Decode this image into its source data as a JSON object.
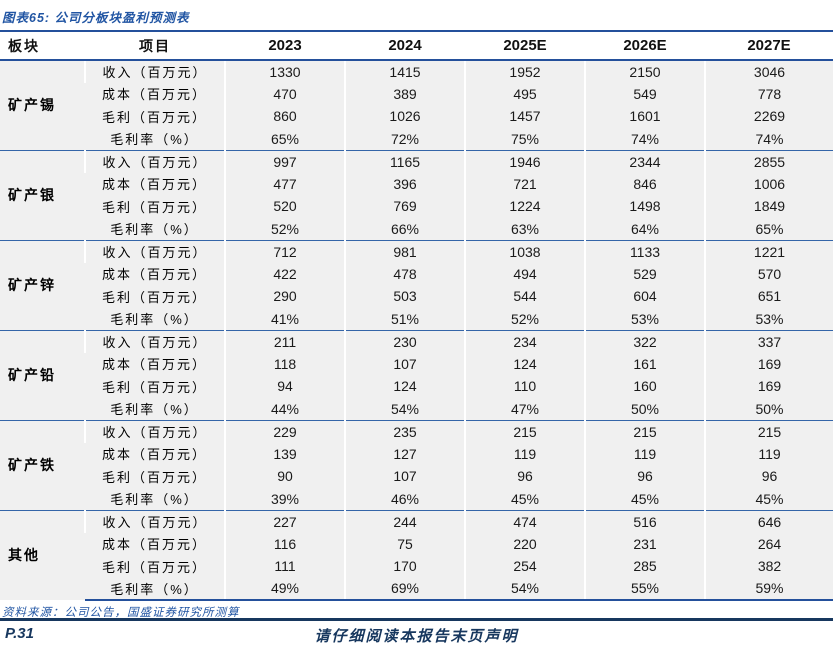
{
  "title": "图表65: 公司分板块盈利预测表",
  "table": {
    "columns": [
      "板块",
      "项目",
      "2023",
      "2024",
      "2025E",
      "2026E",
      "2027E"
    ],
    "segments": [
      {
        "name": "矿产锡",
        "rows": [
          {
            "label": "收入（百万元）",
            "values": [
              "1330",
              "1415",
              "1952",
              "2150",
              "3046"
            ]
          },
          {
            "label": "成本（百万元）",
            "values": [
              "470",
              "389",
              "495",
              "549",
              "778"
            ]
          },
          {
            "label": "毛利（百万元）",
            "values": [
              "860",
              "1026",
              "1457",
              "1601",
              "2269"
            ]
          },
          {
            "label": "毛利率（%）",
            "values": [
              "65%",
              "72%",
              "75%",
              "74%",
              "74%"
            ]
          }
        ]
      },
      {
        "name": "矿产银",
        "rows": [
          {
            "label": "收入（百万元）",
            "values": [
              "997",
              "1165",
              "1946",
              "2344",
              "2855"
            ]
          },
          {
            "label": "成本（百万元）",
            "values": [
              "477",
              "396",
              "721",
              "846",
              "1006"
            ]
          },
          {
            "label": "毛利（百万元）",
            "values": [
              "520",
              "769",
              "1224",
              "1498",
              "1849"
            ]
          },
          {
            "label": "毛利率（%）",
            "values": [
              "52%",
              "66%",
              "63%",
              "64%",
              "65%"
            ]
          }
        ]
      },
      {
        "name": "矿产锌",
        "rows": [
          {
            "label": "收入（百万元）",
            "values": [
              "712",
              "981",
              "1038",
              "1133",
              "1221"
            ]
          },
          {
            "label": "成本（百万元）",
            "values": [
              "422",
              "478",
              "494",
              "529",
              "570"
            ]
          },
          {
            "label": "毛利（百万元）",
            "values": [
              "290",
              "503",
              "544",
              "604",
              "651"
            ]
          },
          {
            "label": "毛利率（%）",
            "values": [
              "41%",
              "51%",
              "52%",
              "53%",
              "53%"
            ]
          }
        ]
      },
      {
        "name": "矿产铅",
        "rows": [
          {
            "label": "收入（百万元）",
            "values": [
              "211",
              "230",
              "234",
              "322",
              "337"
            ]
          },
          {
            "label": "成本（百万元）",
            "values": [
              "118",
              "107",
              "124",
              "161",
              "169"
            ]
          },
          {
            "label": "毛利（百万元）",
            "values": [
              "94",
              "124",
              "110",
              "160",
              "169"
            ]
          },
          {
            "label": "毛利率（%）",
            "values": [
              "44%",
              "54%",
              "47%",
              "50%",
              "50%"
            ]
          }
        ]
      },
      {
        "name": "矿产铁",
        "rows": [
          {
            "label": "收入（百万元）",
            "values": [
              "229",
              "235",
              "215",
              "215",
              "215"
            ]
          },
          {
            "label": "成本（百万元）",
            "values": [
              "139",
              "127",
              "119",
              "119",
              "119"
            ]
          },
          {
            "label": "毛利（百万元）",
            "values": [
              "90",
              "107",
              "96",
              "96",
              "96"
            ]
          },
          {
            "label": "毛利率（%）",
            "values": [
              "39%",
              "46%",
              "45%",
              "45%",
              "45%"
            ]
          }
        ]
      },
      {
        "name": "其他",
        "rows": [
          {
            "label": "收入（百万元）",
            "values": [
              "227",
              "244",
              "474",
              "516",
              "646"
            ]
          },
          {
            "label": "成本（百万元）",
            "values": [
              "116",
              "75",
              "220",
              "231",
              "264"
            ]
          },
          {
            "label": "毛利（百万元）",
            "values": [
              "111",
              "170",
              "254",
              "285",
              "382"
            ]
          },
          {
            "label": "毛利率（%）",
            "values": [
              "49%",
              "69%",
              "54%",
              "55%",
              "59%"
            ]
          }
        ]
      }
    ]
  },
  "source": "资料来源：公司公告，国盛证券研究所测算",
  "footer": {
    "page_number": "P.31",
    "disclaimer": "请仔细阅读本报告末页声明"
  },
  "colors": {
    "accent_blue": "#24509b",
    "group_line_blue": "#3465a8",
    "navy": "#17375e",
    "title_blue": "#2155a3",
    "row_background": "#f0f0f0"
  }
}
